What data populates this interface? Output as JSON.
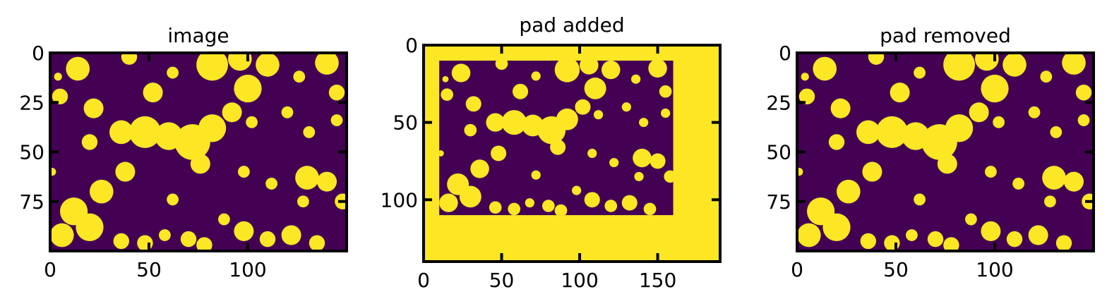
{
  "chart_data": [
    {
      "type": "heatmap",
      "title": "image",
      "colormap": [
        "#440154",
        "#fde725"
      ],
      "xlim": [
        0,
        150
      ],
      "ylim": [
        100,
        0
      ],
      "xticks": [
        0,
        50,
        100
      ],
      "yticks": [
        0,
        25,
        50,
        75
      ],
      "xtick_labels": [
        "0",
        "50",
        "100"
      ],
      "ytick_labels": [
        "0",
        "25",
        "50",
        "75"
      ],
      "inner": {
        "x0": 0,
        "x1": 150,
        "y0": 0,
        "y1": 100
      }
    },
    {
      "type": "heatmap",
      "title": "pad added",
      "colormap": [
        "#440154",
        "#fde725"
      ],
      "xlim": [
        0,
        190
      ],
      "ylim": [
        140,
        0
      ],
      "xticks": [
        0,
        50,
        100,
        150
      ],
      "yticks": [
        0,
        50,
        100
      ],
      "xtick_labels": [
        "0",
        "50",
        "100",
        "150"
      ],
      "ytick_labels": [
        "0",
        "50",
        "100"
      ],
      "inner": {
        "x0": 10,
        "x1": 160,
        "y0": 10,
        "y1": 110
      }
    },
    {
      "type": "heatmap",
      "title": "pad removed",
      "colormap": [
        "#440154",
        "#fde725"
      ],
      "xlim": [
        0,
        150
      ],
      "ylim": [
        100,
        0
      ],
      "xticks": [
        0,
        50,
        100
      ],
      "yticks": [
        0,
        25,
        50,
        75
      ],
      "xtick_labels": [
        "0",
        "50",
        "100"
      ],
      "ytick_labels": [
        "0",
        "25",
        "50",
        "75"
      ],
      "inner": {
        "x0": 0,
        "x1": 150,
        "y0": 0,
        "y1": 100
      }
    }
  ],
  "blobs": [
    {
      "cx": 14,
      "cy": 8,
      "r": 6
    },
    {
      "cx": 22,
      "cy": 28,
      "r": 5
    },
    {
      "cx": 5,
      "cy": 22,
      "r": 4
    },
    {
      "cx": 40,
      "cy": 2,
      "r": 4
    },
    {
      "cx": 52,
      "cy": 20,
      "r": 5
    },
    {
      "cx": 62,
      "cy": 10,
      "r": 3
    },
    {
      "cx": 82,
      "cy": 6,
      "r": 8
    },
    {
      "cx": 96,
      "cy": 3,
      "r": 6
    },
    {
      "cx": 100,
      "cy": 18,
      "r": 7
    },
    {
      "cx": 110,
      "cy": 6,
      "r": 6
    },
    {
      "cx": 92,
      "cy": 30,
      "r": 5
    },
    {
      "cx": 120,
      "cy": 30,
      "r": 3
    },
    {
      "cx": 126,
      "cy": 12,
      "r": 3
    },
    {
      "cx": 140,
      "cy": 5,
      "r": 6
    },
    {
      "cx": 145,
      "cy": 20,
      "r": 4
    },
    {
      "cx": 145,
      "cy": 34,
      "r": 3
    },
    {
      "cx": 36,
      "cy": 40,
      "r": 6
    },
    {
      "cx": 48,
      "cy": 40,
      "r": 8
    },
    {
      "cx": 60,
      "cy": 42,
      "r": 7
    },
    {
      "cx": 72,
      "cy": 45,
      "r": 9
    },
    {
      "cx": 82,
      "cy": 38,
      "r": 7
    },
    {
      "cx": 76,
      "cy": 56,
      "r": 5
    },
    {
      "cx": 102,
      "cy": 35,
      "r": 3
    },
    {
      "cx": 131,
      "cy": 40,
      "r": 3
    },
    {
      "cx": 20,
      "cy": 45,
      "r": 4
    },
    {
      "cx": 38,
      "cy": 60,
      "r": 5
    },
    {
      "cx": 26,
      "cy": 70,
      "r": 6
    },
    {
      "cx": 12,
      "cy": 80,
      "r": 7
    },
    {
      "cx": 20,
      "cy": 88,
      "r": 7
    },
    {
      "cx": 6,
      "cy": 92,
      "r": 6
    },
    {
      "cx": 130,
      "cy": 63,
      "r": 6
    },
    {
      "cx": 140,
      "cy": 65,
      "r": 5
    },
    {
      "cx": 148,
      "cy": 75,
      "r": 4
    },
    {
      "cx": 98,
      "cy": 60,
      "r": 3
    },
    {
      "cx": 112,
      "cy": 66,
      "r": 3
    },
    {
      "cx": 128,
      "cy": 75,
      "r": 3
    },
    {
      "cx": 88,
      "cy": 84,
      "r": 3
    },
    {
      "cx": 98,
      "cy": 90,
      "r": 5
    },
    {
      "cx": 110,
      "cy": 94,
      "r": 4
    },
    {
      "cx": 122,
      "cy": 92,
      "r": 5
    },
    {
      "cx": 135,
      "cy": 96,
      "r": 4
    },
    {
      "cx": 70,
      "cy": 94,
      "r": 4
    },
    {
      "cx": 78,
      "cy": 97,
      "r": 4
    },
    {
      "cx": 48,
      "cy": 96,
      "r": 4
    },
    {
      "cx": 36,
      "cy": 95,
      "r": 4
    },
    {
      "cx": 58,
      "cy": 92,
      "r": 3
    },
    {
      "cx": 62,
      "cy": 74,
      "r": 3
    },
    {
      "cx": 1,
      "cy": 60,
      "r": 2
    },
    {
      "cx": 4,
      "cy": 12,
      "r": 2
    }
  ]
}
